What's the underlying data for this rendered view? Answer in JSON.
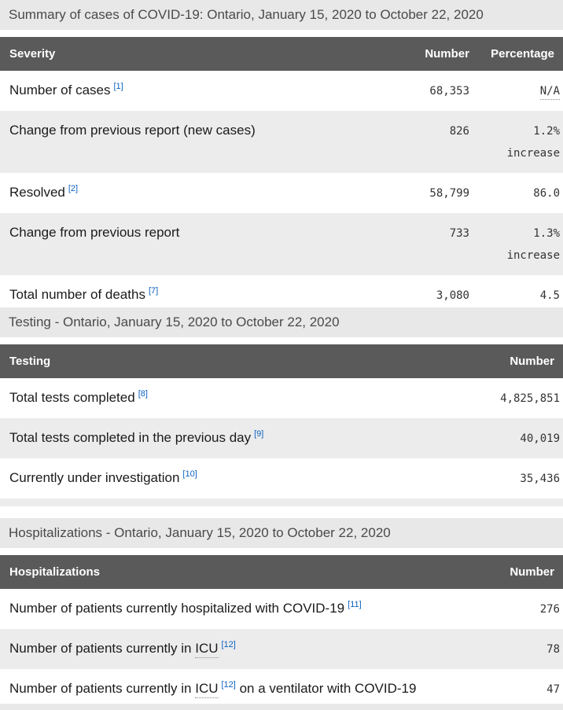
{
  "colors": {
    "header_bg": "#5a5a5a",
    "header_text": "#ffffff",
    "caption_band_bg": "#e8e8e8",
    "stripe_row_bg": "#ececec",
    "footnote_link_blue": "#0c62c1",
    "label_text": "#1b1b1b",
    "number_text": "#333333"
  },
  "sections": [
    {
      "caption": "Summary of cases of COVID-19: Ontario, January 15, 2020 to October 22, 2020",
      "columns": [
        "Severity",
        "Number",
        "Percentage"
      ],
      "rows": [
        {
          "label": "Number of cases",
          "sup": "[1]",
          "number": "68,353",
          "pct1": "N/A"
        },
        {
          "label": "Change from previous report (new cases)",
          "number": "826",
          "pct1": "1.2%",
          "pct2": "increase"
        },
        {
          "label": "Resolved",
          "sup": "[2]",
          "number": "58,799",
          "pct1": "86.0"
        },
        {
          "label": "Change from previous report",
          "number": "733",
          "pct1": "1.3%",
          "pct2": "increase"
        },
        {
          "label": "Total number of deaths",
          "sup": "[7]",
          "number": "3,080",
          "pct1": "4.5"
        }
      ]
    },
    {
      "caption": "Testing - Ontario, January 15, 2020 to October 22, 2020",
      "columns": [
        "Testing",
        "Number"
      ],
      "rows": [
        {
          "label": "Total tests completed",
          "sup": "[8]",
          "number": "4,825,851"
        },
        {
          "label": "Total tests completed in the previous day",
          "sup": "[9]",
          "number": "40,019"
        },
        {
          "label": "Currently under investigation",
          "sup": "[10]",
          "number": "35,436"
        }
      ]
    },
    {
      "caption": "Hospitalizations - Ontario, January 15, 2020 to October 22, 2020",
      "columns": [
        "Hospitalizations",
        "Number"
      ],
      "rows": [
        {
          "label": "Number of patients currently hospitalized with COVID-19",
          "sup": "[11]",
          "number": "276"
        },
        {
          "pre": "Number of patients currently in ",
          "abbr": "ICU",
          "sup": "[12]",
          "number": "78"
        },
        {
          "pre": "Number of patients currently in ",
          "abbr": "ICU",
          "sup": "[12]",
          "post": " on a ventilator with COVID-19",
          "number": "47"
        }
      ]
    }
  ]
}
